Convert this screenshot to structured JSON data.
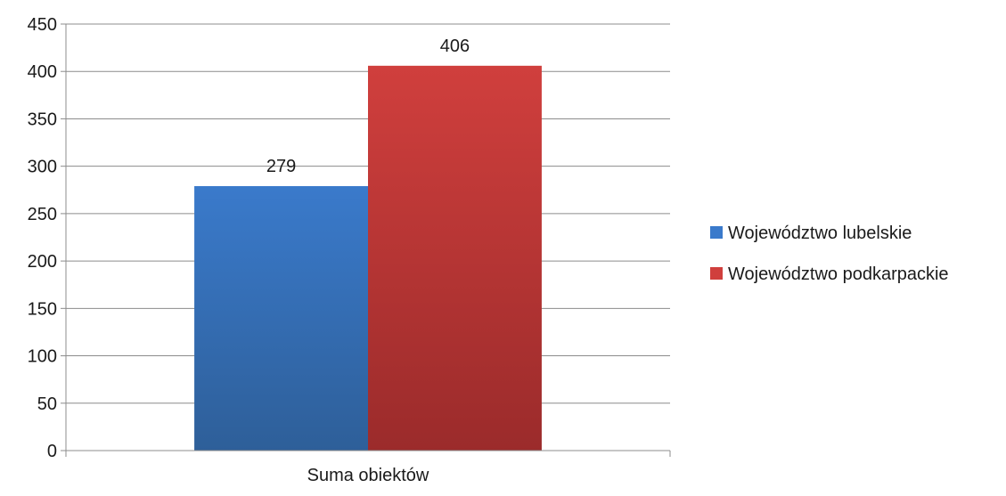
{
  "chart_data": {
    "type": "bar",
    "categories": [
      "Suma obiektów"
    ],
    "series": [
      {
        "name": "Województwo lubelskie",
        "values": [
          279
        ],
        "color": "#3a7acb",
        "color_dark": "#2e5f99"
      },
      {
        "name": "Województwo podkarpackie",
        "values": [
          406
        ],
        "color": "#d03f3d",
        "color_dark": "#9b2b2b"
      }
    ],
    "ylim": [
      0,
      450
    ],
    "y_ticks": [
      0,
      50,
      100,
      150,
      200,
      250,
      300,
      350,
      400,
      450
    ],
    "grid": true,
    "legend_position": "right",
    "data_labels": true,
    "title": "",
    "xlabel": "",
    "ylabel": ""
  }
}
